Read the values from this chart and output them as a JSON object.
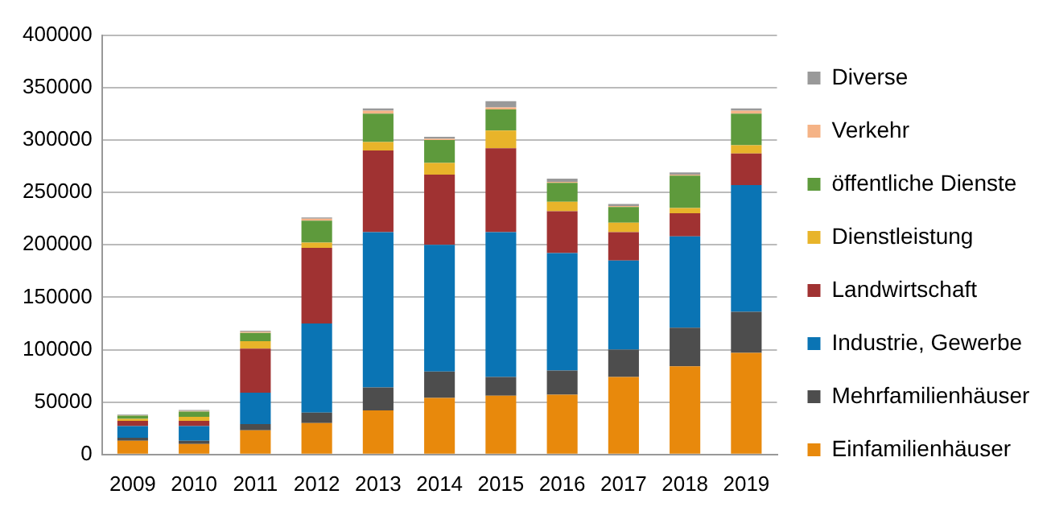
{
  "chart_data": {
    "type": "bar",
    "stacked": true,
    "categories": [
      "2009",
      "2010",
      "2011",
      "2012",
      "2013",
      "2014",
      "2015",
      "2016",
      "2017",
      "2018",
      "2019"
    ],
    "series": [
      {
        "name": "Einfamilienhäuser",
        "color": "#e8890c",
        "values": [
          13000,
          10000,
          23000,
          30000,
          42000,
          54000,
          56000,
          57000,
          74000,
          84000,
          97000
        ]
      },
      {
        "name": "Mehrfamilienhäuser",
        "color": "#4d4d4d",
        "values": [
          3000,
          3000,
          6000,
          10000,
          22000,
          25000,
          18000,
          23000,
          26000,
          37000,
          39000
        ]
      },
      {
        "name": "Industrie, Gewerbe",
        "color": "#0a74b4",
        "values": [
          11000,
          14000,
          30000,
          85000,
          148000,
          121000,
          138000,
          112000,
          85000,
          87000,
          121000
        ]
      },
      {
        "name": "Landwirtschaft",
        "color": "#a03232",
        "values": [
          5000,
          5000,
          42000,
          72000,
          78000,
          67000,
          80000,
          40000,
          27000,
          22000,
          30000
        ]
      },
      {
        "name": "Dienstleistung",
        "color": "#e8b42a",
        "values": [
          2000,
          4000,
          7000,
          5000,
          8000,
          11000,
          17000,
          9000,
          9000,
          5000,
          8000
        ]
      },
      {
        "name": "öffentliche Dienste",
        "color": "#5e9a3c",
        "values": [
          3000,
          5000,
          8000,
          21000,
          27000,
          22000,
          20000,
          18000,
          15000,
          31000,
          30000
        ]
      },
      {
        "name": "Verkehr",
        "color": "#f5b386",
        "values": [
          500,
          500,
          1000,
          2000,
          3000,
          1000,
          2000,
          1000,
          1000,
          1000,
          3000
        ]
      },
      {
        "name": "Diverse",
        "color": "#999999",
        "values": [
          500,
          1000,
          1000,
          1000,
          2000,
          2000,
          6000,
          3000,
          2000,
          2000,
          2000
        ]
      }
    ],
    "ylim": [
      0,
      400000
    ],
    "yticks": [
      0,
      50000,
      100000,
      150000,
      200000,
      250000,
      300000,
      350000,
      400000
    ],
    "grid": "y",
    "legend": "right"
  }
}
